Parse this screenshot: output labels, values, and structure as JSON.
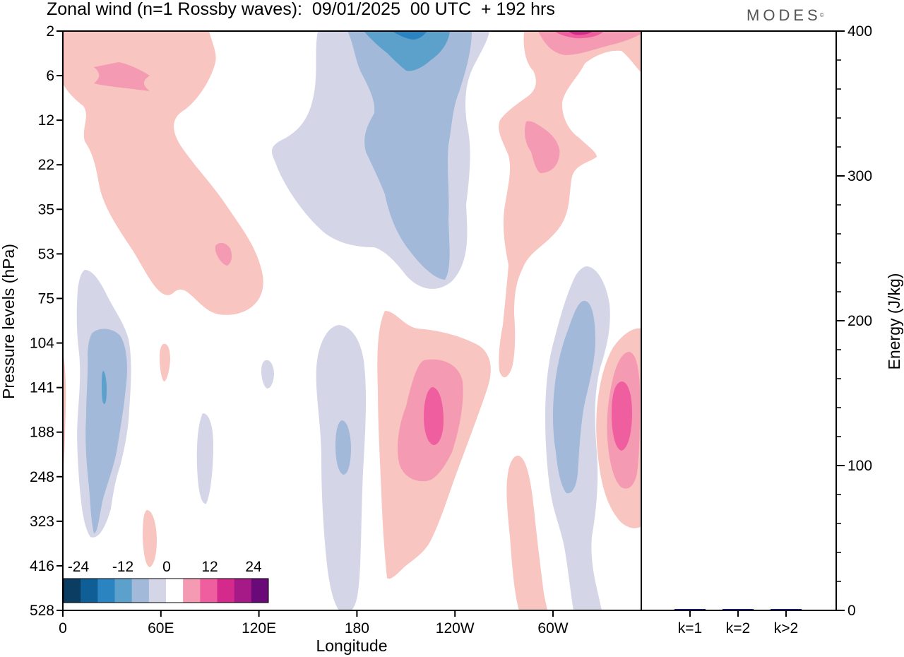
{
  "title": "Zonal wind (n=1 Rossby waves):  09/01/2025  00 UTC  + 192 hrs",
  "brand": "MODES",
  "brand_mark": "©",
  "colors": {
    "-24": "#0b3d63",
    "-20": "#0f5e95",
    "-16": "#2b83bf",
    "-12": "#5ca0cc",
    "-8": "#a2b9d9",
    "-4": "#d4d6e8",
    "0": "#ffffff",
    "4": "#f8c5c0",
    "8": "#f59ab3",
    "12": "#ef5fa0",
    "16": "#d42a8c",
    "20": "#a51a86",
    "24": "#6a0a78"
  },
  "chart_data": [
    {
      "type": "heatmap",
      "description_variable": "Zonal wind anomaly, filled contours",
      "xlabel": "Longitude",
      "ylabel": "Pressure levels (hPa)",
      "xticks": [
        "0",
        "60E",
        "120E",
        "180",
        "120W",
        "60W"
      ],
      "xtick_degrees_east": [
        0,
        60,
        120,
        180,
        240,
        300
      ],
      "xlim_degrees_east": [
        0,
        360
      ],
      "yticks": [
        "2",
        "6",
        "12",
        "22",
        "35",
        "53",
        "75",
        "104",
        "141",
        "188",
        "248",
        "323",
        "416",
        "528"
      ],
      "colorbar": {
        "levels": [
          -24,
          -20,
          -16,
          -12,
          -8,
          -4,
          0,
          4,
          8,
          12,
          16,
          20,
          24
        ],
        "labels": [
          "-24",
          "-12",
          "0",
          "12",
          "24"
        ]
      },
      "features": [
        {
          "lon": 60,
          "level_index": 3.5,
          "value": 4,
          "note": "upper-level positive band 20E-110E"
        },
        {
          "lon": 25,
          "level_index": 1,
          "value": 8
        },
        {
          "lon": 100,
          "level_index": 5,
          "value": 8
        },
        {
          "lon": 195,
          "level_index": 2,
          "value": -8,
          "note": "upper-level negative band 130E-230E"
        },
        {
          "lon": 212,
          "level_index": 0,
          "value": -16
        },
        {
          "lon": 30,
          "level_index": 8.5,
          "value": -12
        },
        {
          "lon": 175,
          "level_index": 9.5,
          "value": -8
        },
        {
          "lon": 230,
          "level_index": 9,
          "value": 12
        },
        {
          "lon": 318,
          "level_index": 8.5,
          "value": -8
        },
        {
          "lon": 346,
          "level_index": 9,
          "value": 12
        },
        {
          "lon": 295,
          "level_index": 3,
          "value": 8
        },
        {
          "lon": 325,
          "level_index": 0,
          "value": 12
        }
      ]
    },
    {
      "type": "bar",
      "categories": [
        "k=1",
        "k=2",
        "k>2"
      ],
      "values": [
        0.5,
        0.4,
        0.6
      ],
      "ylabel": "Energy (J/kg)",
      "ylim": [
        0,
        400
      ],
      "yticks": [
        0,
        100,
        200,
        300,
        400
      ],
      "bar_color": "#1a1a5e"
    }
  ]
}
